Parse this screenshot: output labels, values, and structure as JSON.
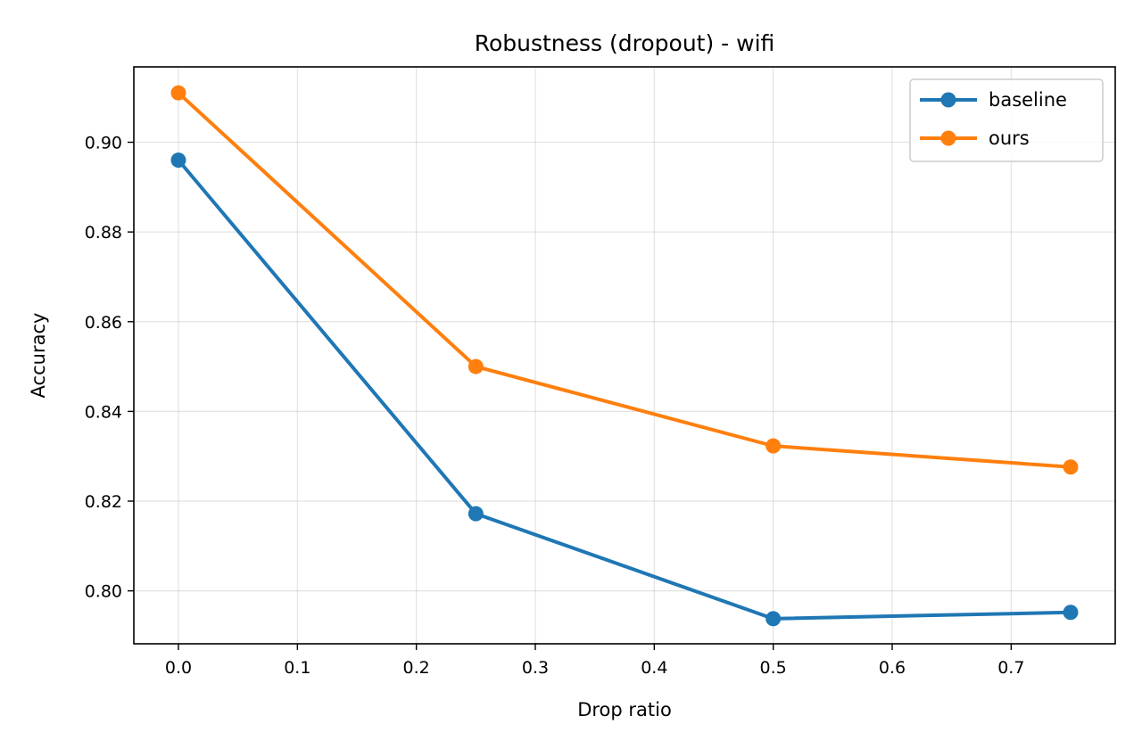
{
  "chart_data": {
    "type": "line",
    "title": "Robustness (dropout) - wifi",
    "xlabel": "Drop ratio",
    "ylabel": "Accuracy",
    "xlim": [
      -0.0375,
      0.7875
    ],
    "ylim": [
      0.7882,
      0.9168
    ],
    "xticks": [
      0.0,
      0.1,
      0.2,
      0.3,
      0.4,
      0.5,
      0.6,
      0.7
    ],
    "xtick_labels": [
      "0.0",
      "0.1",
      "0.2",
      "0.3",
      "0.4",
      "0.5",
      "0.6",
      "0.7"
    ],
    "yticks": [
      0.8,
      0.82,
      0.84,
      0.86,
      0.88,
      0.9
    ],
    "ytick_labels": [
      "0.80",
      "0.82",
      "0.84",
      "0.86",
      "0.88",
      "0.90"
    ],
    "grid": true,
    "legend_position": "top-right",
    "x": [
      0.0,
      0.25,
      0.5,
      0.75
    ],
    "series": [
      {
        "name": "baseline",
        "color": "#1f77b4",
        "values": [
          0.896,
          0.8172,
          0.7938,
          0.7952
        ]
      },
      {
        "name": "ours",
        "color": "#ff7f0e",
        "values": [
          0.911,
          0.85,
          0.8323,
          0.8276
        ]
      }
    ]
  }
}
